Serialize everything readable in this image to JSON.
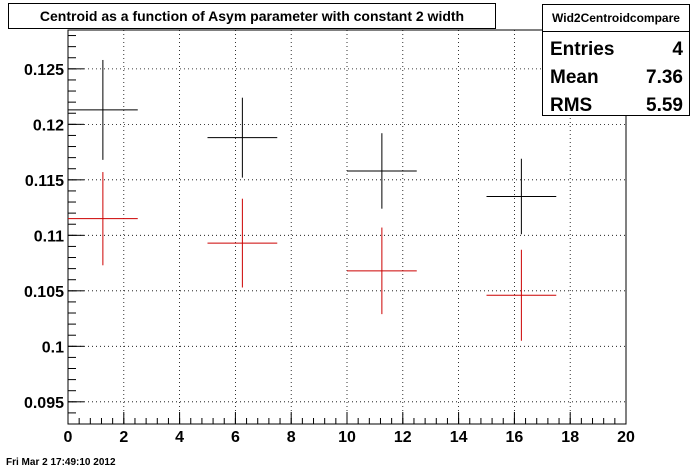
{
  "title": "Centroid as a function of Asym parameter with constant 2 width",
  "stats": {
    "name": "Wid2Centroidcompare",
    "rows": [
      {
        "label": "Entries",
        "value": "4"
      },
      {
        "label": "Mean",
        "value": "7.36"
      },
      {
        "label": "RMS",
        "value": "5.59"
      }
    ]
  },
  "footer": "Fri Mar  2 17:49:10 2012",
  "colors": {
    "black_series": "#000000",
    "red_series": "#cc0000"
  },
  "chart_data": {
    "type": "scatter",
    "title": "Centroid as a function of Asym parameter with constant 2 width",
    "xlabel": "",
    "ylabel": "",
    "xlim": [
      0,
      20
    ],
    "ylim": [
      0.093,
      0.1285
    ],
    "grid": true,
    "x_ticks": [
      0,
      2,
      4,
      6,
      8,
      10,
      12,
      14,
      16,
      18,
      20
    ],
    "x_tick_labels": [
      "0",
      "2",
      "4",
      "6",
      "8",
      "10",
      "12",
      "14",
      "16",
      "18",
      "20"
    ],
    "y_ticks": [
      0.095,
      0.1,
      0.105,
      0.11,
      0.115,
      0.12,
      0.125
    ],
    "y_tick_labels": [
      "0.095",
      "0.1",
      "0.105",
      "0.11",
      "0.115",
      "0.12",
      "0.125"
    ],
    "series": [
      {
        "color": "#000000",
        "points": [
          {
            "x": 1.25,
            "y": 0.1213,
            "xerr": 1.25,
            "yerr": 0.0045
          },
          {
            "x": 6.25,
            "y": 0.1188,
            "xerr": 1.25,
            "yerr": 0.0036
          },
          {
            "x": 11.25,
            "y": 0.1158,
            "xerr": 1.25,
            "yerr": 0.0034
          },
          {
            "x": 16.25,
            "y": 0.1135,
            "xerr": 1.25,
            "yerr": 0.0034
          }
        ]
      },
      {
        "color": "#cc0000",
        "points": [
          {
            "x": 1.25,
            "y": 0.1115,
            "xerr": 1.25,
            "yerr": 0.0042
          },
          {
            "x": 6.25,
            "y": 0.1093,
            "xerr": 1.25,
            "yerr": 0.004
          },
          {
            "x": 11.25,
            "y": 0.1068,
            "xerr": 1.25,
            "yerr": 0.0039
          },
          {
            "x": 16.25,
            "y": 0.1046,
            "xerr": 1.25,
            "yerr": 0.0041
          }
        ]
      }
    ]
  }
}
